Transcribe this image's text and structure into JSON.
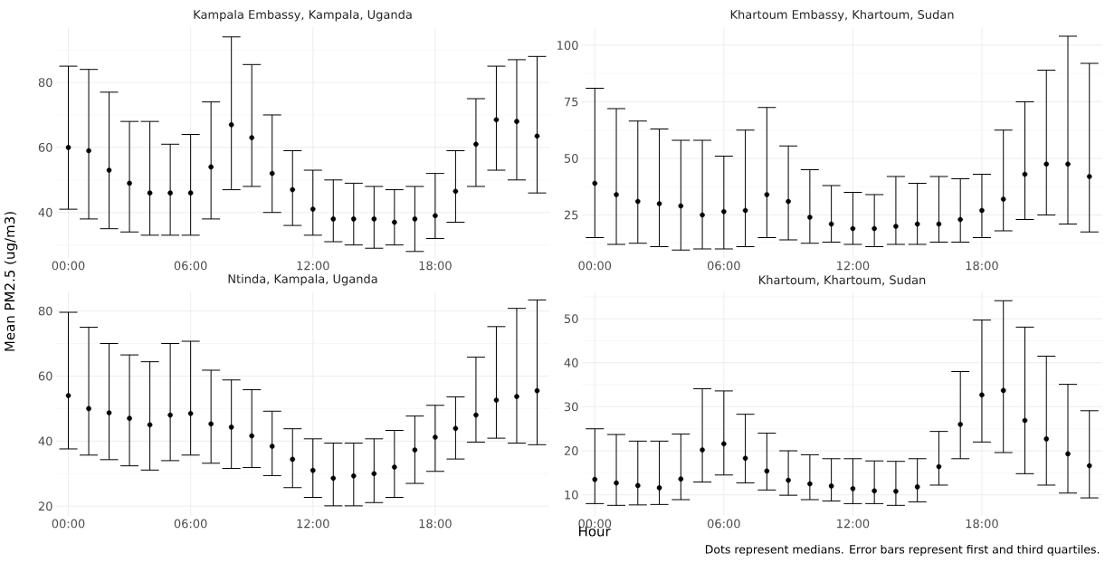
{
  "chart_data": [
    {
      "type": "scatter",
      "title": "Kampala Embassy, Kampala, Uganda",
      "ylabel": "Mean PM2.5 (ug/m3)",
      "color": "#000000",
      "grid": true,
      "x": [
        0,
        1,
        2,
        3,
        4,
        5,
        6,
        7,
        8,
        9,
        10,
        11,
        12,
        13,
        14,
        15,
        16,
        17,
        18,
        19,
        20,
        21,
        22,
        23
      ],
      "values": [
        60,
        59,
        53,
        49,
        46,
        46,
        46,
        54,
        67,
        63,
        52,
        47,
        41,
        38,
        38,
        38,
        37,
        38,
        39,
        46.5,
        61,
        68.5,
        68,
        63.5
      ],
      "errors": [
        [
          41,
          85
        ],
        [
          38,
          84
        ],
        [
          35,
          77
        ],
        [
          34,
          68
        ],
        [
          33,
          68
        ],
        [
          33,
          61
        ],
        [
          33,
          64
        ],
        [
          38,
          74
        ],
        [
          47,
          94
        ],
        [
          48,
          85.5
        ],
        [
          40,
          70
        ],
        [
          36,
          59
        ],
        [
          33,
          53
        ],
        [
          31,
          50
        ],
        [
          30,
          49
        ],
        [
          29,
          48
        ],
        [
          30,
          47
        ],
        [
          28,
          48
        ],
        [
          32,
          52
        ],
        [
          37,
          59
        ],
        [
          48,
          75
        ],
        [
          53,
          85
        ],
        [
          50,
          87
        ],
        [
          46,
          88
        ]
      ],
      "xlim": [
        -0.6,
        23.6
      ],
      "ylim": [
        26,
        97
      ],
      "xticks": [
        {
          "value": 0,
          "label": "00:00"
        },
        {
          "value": 6,
          "label": "06:00"
        },
        {
          "value": 12,
          "label": "12:00"
        },
        {
          "value": 18,
          "label": "18:00"
        }
      ],
      "yticks": [
        40,
        60,
        80
      ]
    },
    {
      "type": "scatter",
      "title": "Khartoum Embassy, Khartoum, Sudan",
      "color": "#000000",
      "grid": true,
      "x": [
        0,
        1,
        2,
        3,
        4,
        5,
        6,
        7,
        8,
        9,
        10,
        11,
        12,
        13,
        14,
        15,
        16,
        17,
        18,
        19,
        20,
        21,
        22,
        23
      ],
      "values": [
        39,
        34,
        31,
        30,
        29,
        25,
        26.5,
        27,
        34,
        31,
        24,
        21,
        19,
        19,
        20,
        21,
        21,
        23,
        27,
        32,
        43,
        47.5,
        47.5,
        42
      ],
      "errors": [
        [
          15,
          81
        ],
        [
          12,
          72
        ],
        [
          12.5,
          66.5
        ],
        [
          11,
          63
        ],
        [
          9.5,
          58
        ],
        [
          10,
          58
        ],
        [
          10,
          51
        ],
        [
          11,
          62.5
        ],
        [
          15,
          72.5
        ],
        [
          14,
          55.5
        ],
        [
          12.5,
          45
        ],
        [
          13,
          38
        ],
        [
          12,
          35
        ],
        [
          11,
          34
        ],
        [
          12,
          42
        ],
        [
          12,
          39
        ],
        [
          13,
          42
        ],
        [
          13,
          41
        ],
        [
          15,
          43
        ],
        [
          18,
          62.5
        ],
        [
          23,
          75
        ],
        [
          25,
          89
        ],
        [
          21,
          104
        ],
        [
          17.5,
          92
        ]
      ],
      "xlim": [
        -0.6,
        23.6
      ],
      "ylim": [
        6,
        108
      ],
      "xticks": [
        {
          "value": 0,
          "label": "00:00"
        },
        {
          "value": 6,
          "label": "06:00"
        },
        {
          "value": 12,
          "label": "12:00"
        },
        {
          "value": 18,
          "label": "18:00"
        }
      ],
      "yticks": [
        25,
        50,
        75,
        100
      ]
    },
    {
      "type": "scatter",
      "title": "Ntinda, Kampala, Uganda",
      "color": "#000000",
      "grid": true,
      "x": [
        0,
        1,
        2,
        3,
        4,
        5,
        6,
        7,
        8,
        9,
        10,
        11,
        12,
        13,
        14,
        15,
        16,
        17,
        18,
        19,
        20,
        21,
        22,
        23
      ],
      "values": [
        54,
        50,
        48.7,
        47,
        45,
        48,
        48.5,
        45.3,
        44.3,
        41.6,
        38.4,
        34.4,
        31,
        28.6,
        29.3,
        30,
        32,
        37.3,
        41.2,
        43.9,
        48,
        52.6,
        53.7,
        55.5
      ],
      "errors": [
        [
          37.6,
          79.6
        ],
        [
          35.7,
          75
        ],
        [
          34.3,
          70
        ],
        [
          32.4,
          66.5
        ],
        [
          31.1,
          64.4
        ],
        [
          34,
          70
        ],
        [
          35.7,
          70.7
        ],
        [
          33.2,
          61.8
        ],
        [
          31.6,
          58.8
        ],
        [
          31.9,
          55.8
        ],
        [
          29.4,
          49.2
        ],
        [
          25.7,
          43.8
        ],
        [
          22.7,
          40.7
        ],
        [
          20.1,
          39.4
        ],
        [
          20.1,
          39.4
        ],
        [
          21.1,
          40.7
        ],
        [
          22.7,
          43.3
        ],
        [
          27,
          47.7
        ],
        [
          30.7,
          51
        ],
        [
          34.5,
          53.6
        ],
        [
          39.7,
          65.8
        ],
        [
          40.9,
          75.2
        ],
        [
          39.4,
          80.8
        ],
        [
          38.9,
          83.4
        ]
      ],
      "xlim": [
        -0.6,
        23.6
      ],
      "ylim": [
        17,
        86
      ],
      "xticks": [
        {
          "value": 0,
          "label": "00:00"
        },
        {
          "value": 6,
          "label": "06:00"
        },
        {
          "value": 12,
          "label": "12:00"
        },
        {
          "value": 18,
          "label": "18:00"
        }
      ],
      "yticks": [
        20,
        40,
        60,
        80
      ]
    },
    {
      "type": "scatter",
      "title": "Khartoum, Khartoum, Sudan",
      "xlabel": "Hour",
      "color": "#000000",
      "grid": true,
      "annotations": [
        "Dots represent medians. Error bars represent first and third quartiles."
      ],
      "x": [
        0,
        1,
        2,
        3,
        4,
        5,
        6,
        7,
        8,
        9,
        10,
        11,
        12,
        13,
        14,
        15,
        16,
        17,
        18,
        19,
        20,
        21,
        22,
        23
      ],
      "values": [
        13.5,
        12.7,
        12.1,
        11.6,
        13.6,
        20.2,
        21.6,
        18.3,
        15.4,
        13.3,
        12.5,
        12,
        11.4,
        10.9,
        10.8,
        11.8,
        16.4,
        26,
        32.7,
        33.7,
        26.9,
        22.7,
        19.3,
        16.6
      ],
      "errors": [
        [
          8,
          25
        ],
        [
          7.6,
          23.7
        ],
        [
          7.7,
          22.2
        ],
        [
          7.8,
          22.2
        ],
        [
          8.9,
          23.8
        ],
        [
          12.9,
          34.1
        ],
        [
          14.5,
          33.6
        ],
        [
          12.7,
          28.3
        ],
        [
          11.1,
          24
        ],
        [
          9.9,
          20
        ],
        [
          8.9,
          19.1
        ],
        [
          8.6,
          18.2
        ],
        [
          8,
          18.2
        ],
        [
          8,
          17.7
        ],
        [
          7.6,
          17.6
        ],
        [
          8.4,
          18.2
        ],
        [
          12.2,
          24.4
        ],
        [
          18.2,
          38
        ],
        [
          22,
          49.7
        ],
        [
          19.6,
          54.1
        ],
        [
          14.8,
          48.1
        ],
        [
          12.2,
          41.5
        ],
        [
          10.4,
          35.1
        ],
        [
          9.3,
          29.1
        ]
      ],
      "xlim": [
        -0.6,
        23.6
      ],
      "ylim": [
        5.2,
        56.2
      ],
      "xticks": [
        {
          "value": 0,
          "label": "00:00"
        },
        {
          "value": 6,
          "label": "06:00"
        },
        {
          "value": 12,
          "label": "12:00"
        },
        {
          "value": 18,
          "label": "18:00"
        }
      ],
      "yticks": [
        10,
        20,
        30,
        40,
        50
      ]
    }
  ]
}
